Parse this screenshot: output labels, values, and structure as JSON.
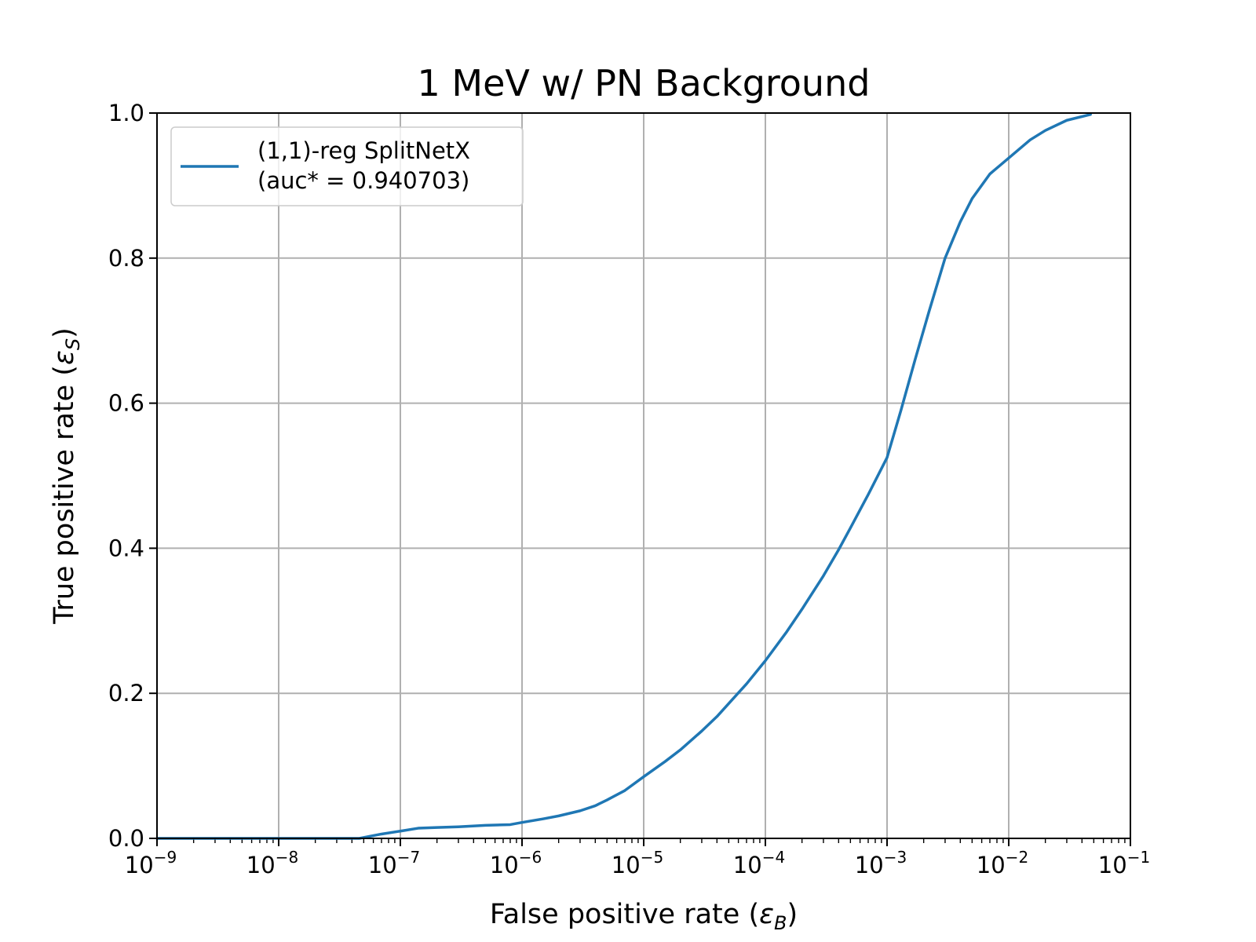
{
  "chart_data": {
    "type": "line",
    "title": "1 MeV w/ PN Background",
    "xlabel": {
      "text": "False positive rate (",
      "symbol": "ε",
      "sub": "B",
      "close": ")"
    },
    "ylabel": {
      "text": "True positive rate (",
      "symbol": "ε",
      "sub": "S",
      "close": ")"
    },
    "xscale": "log",
    "xlim": [
      1e-09,
      0.1
    ],
    "ylim": [
      0.0,
      1.0
    ],
    "grid": true,
    "legend_position": "upper-left",
    "x_ticks": [
      {
        "base": "10",
        "exp": "−9",
        "value": 1e-09
      },
      {
        "base": "10",
        "exp": "−8",
        "value": 1e-08
      },
      {
        "base": "10",
        "exp": "−7",
        "value": 1e-07
      },
      {
        "base": "10",
        "exp": "−6",
        "value": 1e-06
      },
      {
        "base": "10",
        "exp": "−5",
        "value": 1e-05
      },
      {
        "base": "10",
        "exp": "−4",
        "value": 0.0001
      },
      {
        "base": "10",
        "exp": "−3",
        "value": 0.001
      },
      {
        "base": "10",
        "exp": "−2",
        "value": 0.01
      },
      {
        "base": "10",
        "exp": "−1",
        "value": 0.1
      }
    ],
    "y_ticks": [
      {
        "label": "0.0",
        "value": 0.0
      },
      {
        "label": "0.2",
        "value": 0.2
      },
      {
        "label": "0.4",
        "value": 0.4
      },
      {
        "label": "0.6",
        "value": 0.6
      },
      {
        "label": "0.8",
        "value": 0.8
      },
      {
        "label": "1.0",
        "value": 1.0
      }
    ],
    "series": [
      {
        "name": "(1,1)-reg SplitNetX",
        "name_line2": "(auc* = 0.940703)",
        "color": "#1f77b4",
        "x": [
          1e-09,
          1e-08,
          4.6e-08,
          7e-08,
          1e-07,
          1.4e-07,
          2e-07,
          3e-07,
          5e-07,
          8e-07,
          1e-06,
          1.5e-06,
          2e-06,
          3e-06,
          4e-06,
          5e-06,
          7e-06,
          1e-05,
          1.5e-05,
          2e-05,
          3e-05,
          4e-05,
          5e-05,
          7e-05,
          0.0001,
          0.00015,
          0.0002,
          0.0003,
          0.0004,
          0.0005,
          0.0007,
          0.001,
          0.0013,
          0.0017,
          0.0022,
          0.003,
          0.004,
          0.005,
          0.007,
          0.01,
          0.015,
          0.02,
          0.03,
          0.047
        ],
        "y": [
          0.0,
          0.0,
          0.0,
          0.006,
          0.01,
          0.014,
          0.015,
          0.016,
          0.018,
          0.019,
          0.022,
          0.027,
          0.031,
          0.038,
          0.045,
          0.053,
          0.066,
          0.085,
          0.106,
          0.122,
          0.148,
          0.168,
          0.186,
          0.213,
          0.245,
          0.285,
          0.316,
          0.362,
          0.398,
          0.428,
          0.474,
          0.525,
          0.59,
          0.66,
          0.725,
          0.8,
          0.85,
          0.882,
          0.916,
          0.938,
          0.963,
          0.976,
          0.99,
          0.998
        ]
      }
    ]
  }
}
